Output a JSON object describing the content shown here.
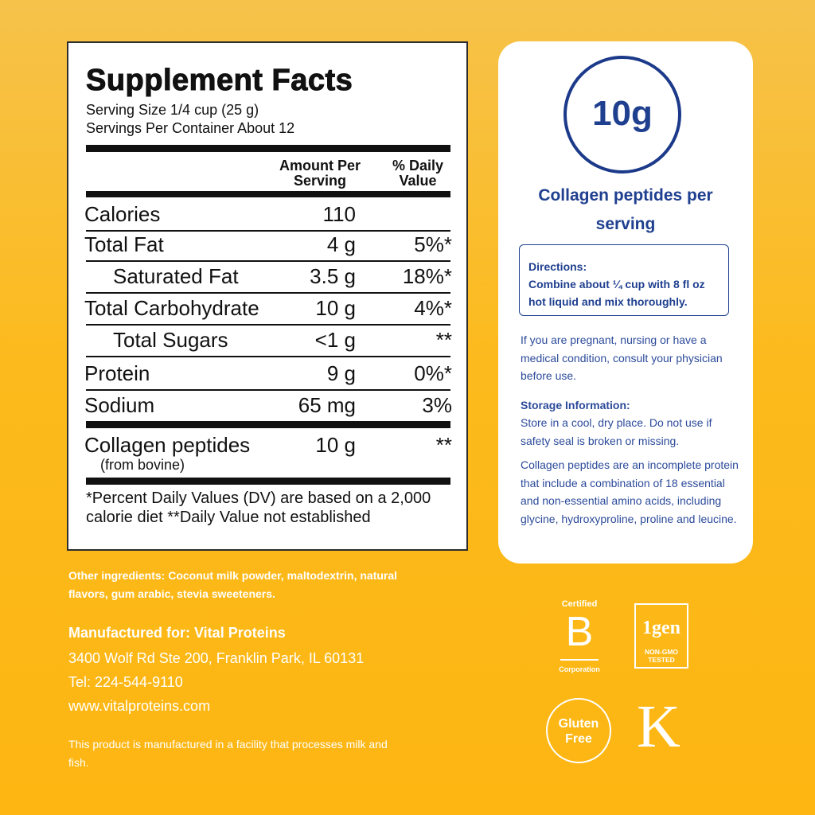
{
  "facts": {
    "title": "Supplement Facts",
    "serving_size": "Serving Size 1/4 cup (25 g)",
    "servings_per_container": "Servings Per Container About 12",
    "amount_header": "Amount Per Serving",
    "dv_header": "% Daily Value",
    "rows": [
      {
        "name": "Calories",
        "amount": "110"
      },
      {
        "name": "Total Fat",
        "amount": "4 g",
        "dv": "5%*"
      },
      {
        "name": "Saturated Fat",
        "amount": "3.5 g",
        "dv": "18%*",
        "indent": true
      },
      {
        "name": "Total Carbohydrate",
        "amount": "10 g",
        "dv": "4%*"
      },
      {
        "name": "Total Sugars",
        "amount": "<1 g",
        "dv": "**",
        "indent": true
      },
      {
        "name": "Protein",
        "amount": "9 g",
        "dv": "0%*"
      },
      {
        "name": "Sodium",
        "amount": "65 mg",
        "dv": "3%"
      },
      {
        "name": "Collagen peptides",
        "note": "(from bovine)",
        "amount": "10 g",
        "dv": "**"
      }
    ],
    "footnote": "*Percent Daily Values (DV) are based on a 2,000 calorie diet **Daily Value not established"
  },
  "card": {
    "badge": "10g",
    "caption": "Collagen peptides per serving",
    "directions_title": "Directions:",
    "directions": "Combine about ¼ cup with 8 fl oz hot liquid and mix thoroughly.",
    "warning": "If you are pregnant, nursing or have a medical condition, consult your physician before use.",
    "storage_title": "Storage Information:",
    "storage": "Store in a cool, dry place. Do not use if safety seal is broken or missing.",
    "note": "Collagen peptides are an incomplete protein that include a combination of 18 essential and non-essential amino acids, including glycine, hydroxyproline, proline and leucine."
  },
  "footer": {
    "ingredients": "Other ingredients: Coconut milk powder, maltodextrin, natural flavors, gum arabic, stevia sweeteners.",
    "manufacturer": "Manufactured for: Vital Proteins",
    "address": "3400 Wolf Rd Ste 200, Franklin Park, IL 60131",
    "phone": "Tel: 224-544-9110",
    "website": "www.vitalproteins.com",
    "facility": "This product is manufactured in a facility that processes milk and fish."
  },
  "badges": {
    "bcorp_top": "Certified",
    "bcorp_letter": "B",
    "bcorp_bottom": "Corporation",
    "nongmo_mark": "1gen",
    "nongmo_label": "NON-GMO TESTED",
    "gluten": "Gluten Free",
    "k_mark": "K"
  }
}
